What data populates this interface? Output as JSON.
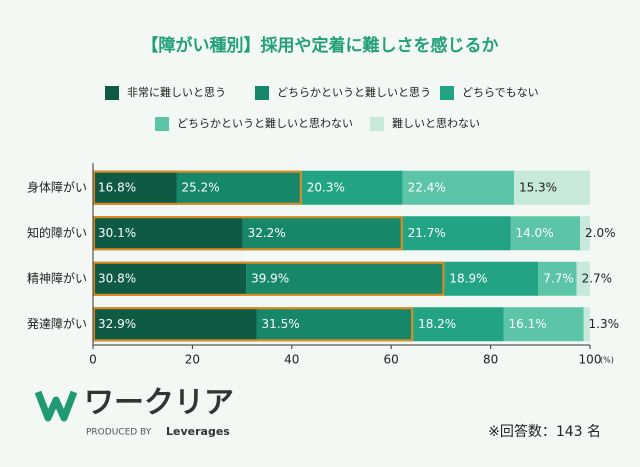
{
  "chart_data": {
    "type": "stacked-bar-horizontal",
    "title": "【障がい種別】採用や定着に難しさを感じるか",
    "categories": [
      "身体障がい",
      "知的障がい",
      "精神障がい",
      "発達障がい"
    ],
    "series": [
      {
        "name": "非常に難しいと思う",
        "color": "#0e5a44",
        "values": [
          16.8,
          30.1,
          30.8,
          32.9
        ],
        "value_labels": [
          "16.8%",
          "30.1%",
          "30.8%",
          "32.9%"
        ]
      },
      {
        "name": "どちらかというと難しいと思う",
        "color": "#17876a",
        "values": [
          25.2,
          32.2,
          39.9,
          31.5
        ],
        "value_labels": [
          "25.2%",
          "32.2%",
          "39.9%",
          "31.5%"
        ]
      },
      {
        "name": "どちらでもない",
        "color": "#22a484",
        "values": [
          20.3,
          21.7,
          18.9,
          18.2
        ],
        "value_labels": [
          "20.3%",
          "21.7%",
          "18.9%",
          "18.2%"
        ]
      },
      {
        "name": "どちらかというと難しいと思わない",
        "color": "#5cc4a7",
        "values": [
          22.4,
          14.0,
          7.7,
          16.1
        ],
        "value_labels": [
          "22.4%",
          "14.0%",
          "7.7%",
          "16.1%"
        ]
      },
      {
        "name": "難しいと思わない",
        "color": "#c6e9db",
        "values": [
          15.3,
          2.0,
          2.7,
          1.3
        ],
        "value_labels": [
          "15.3%",
          "2.0%",
          "2.7%",
          "1.3%"
        ]
      }
    ],
    "highlight_color": "#e08a1e",
    "xlim": [
      0,
      100
    ],
    "xticks": [
      0,
      20,
      40,
      60,
      80,
      100
    ],
    "x_label": "(%)"
  },
  "logo": {
    "name": "ワークリア",
    "produced_by": "PRODUCED BY",
    "brand": "Leverages"
  },
  "note": "※回答数：143 名"
}
